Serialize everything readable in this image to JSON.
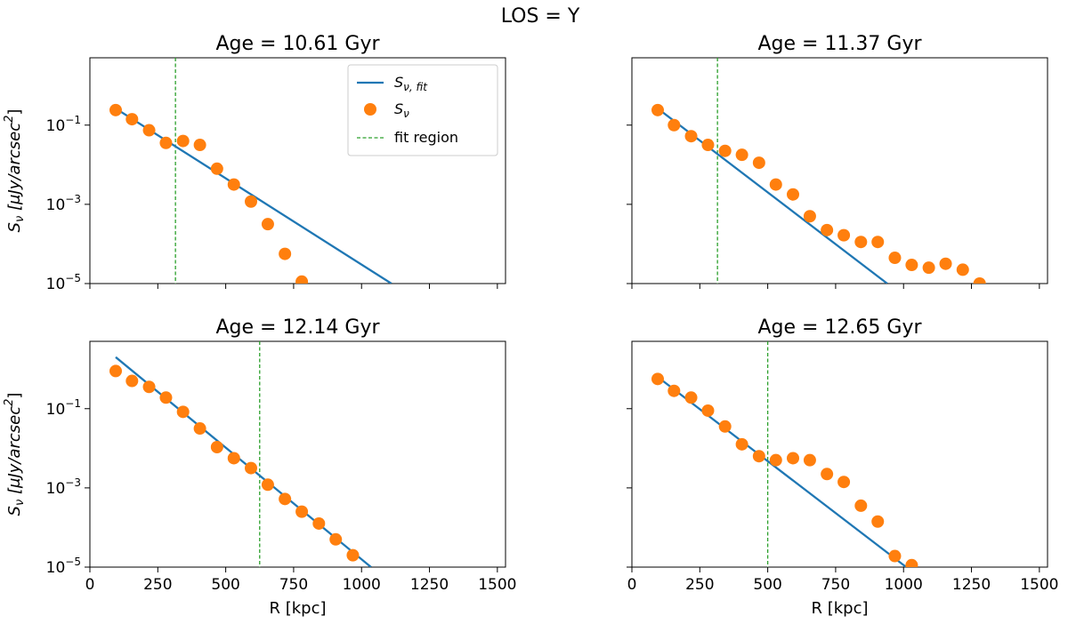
{
  "suptitle": "LOS = Y",
  "colors": {
    "fit": "#1f77b4",
    "data": "#ff7f0e",
    "region": "#2ca02c"
  },
  "legend": {
    "fit_label": "S",
    "fit_sub": "ν, fit",
    "data_label": "S",
    "data_sub": "ν",
    "region_label": "fit region"
  },
  "axis_text": {
    "xlabel": "R [kpc]",
    "ylabel": "S",
    "ylabel_sub": "ν",
    "ylabel_units": " [μJy/arcsec",
    "ylabel_sup": "2",
    "ylabel_close": "]",
    "ytick_base": "10",
    "xticks": [
      "0",
      "250",
      "500",
      "750",
      "1000",
      "1250",
      "1500"
    ],
    "yticks": [
      {
        "exp": "−1",
        "value": -1
      },
      {
        "exp": "−3",
        "value": -3
      },
      {
        "exp": "−5",
        "value": -5
      }
    ]
  },
  "chart_data": [
    {
      "type": "scatter",
      "title": "Age = 10.61 Gyr",
      "xlim": [
        0,
        1530
      ],
      "ylim_log10": [
        -5,
        0.7
      ],
      "xticks": [
        0,
        250,
        500,
        750,
        1000,
        1250,
        1500
      ],
      "xtick_labels_visible": false,
      "ytick_labels_visible": true,
      "fit_region_R": 315,
      "fit_line": {
        "x": [
          95,
          1110
        ],
        "log10_y": [
          -0.58,
          -5.0
        ]
      },
      "points": {
        "R": [
          95,
          155,
          218,
          280,
          343,
          405,
          468,
          530,
          593,
          655,
          718,
          780
        ],
        "log10_S": [
          -0.62,
          -0.85,
          -1.13,
          -1.45,
          -1.4,
          -1.5,
          -2.1,
          -2.5,
          -2.93,
          -3.5,
          -4.25,
          -4.95
        ]
      }
    },
    {
      "type": "scatter",
      "title": "Age = 11.37 Gyr",
      "xlim": [
        0,
        1530
      ],
      "ylim_log10": [
        -5,
        0.7
      ],
      "xticks": [
        0,
        250,
        500,
        750,
        1000,
        1250,
        1500
      ],
      "xtick_labels_visible": false,
      "ytick_labels_visible": false,
      "fit_region_R": 315,
      "fit_line": {
        "x": [
          95,
          940
        ],
        "log10_y": [
          -0.58,
          -5.0
        ]
      },
      "points": {
        "R": [
          95,
          155,
          218,
          280,
          343,
          405,
          468,
          530,
          593,
          655,
          718,
          780,
          843,
          905,
          968,
          1030,
          1093,
          1155,
          1218,
          1280
        ],
        "log10_S": [
          -0.62,
          -1.0,
          -1.28,
          -1.5,
          -1.65,
          -1.75,
          -1.95,
          -2.5,
          -2.75,
          -3.3,
          -3.65,
          -3.78,
          -3.95,
          -3.95,
          -4.35,
          -4.53,
          -4.6,
          -4.5,
          -4.65,
          -5.0
        ]
      }
    },
    {
      "type": "scatter",
      "title": "Age = 12.14 Gyr",
      "xlim": [
        0,
        1530
      ],
      "ylim_log10": [
        -5,
        0.7
      ],
      "xticks": [
        0,
        250,
        500,
        750,
        1000,
        1250,
        1500
      ],
      "xtick_labels_visible": true,
      "ytick_labels_visible": true,
      "fit_region_R": 625,
      "fit_line": {
        "x": [
          95,
          1035
        ],
        "log10_y": [
          0.3,
          -5.0
        ]
      },
      "points": {
        "R": [
          95,
          155,
          218,
          280,
          343,
          405,
          468,
          530,
          593,
          655,
          718,
          780,
          843,
          905,
          968
        ],
        "log10_S": [
          -0.05,
          -0.3,
          -0.45,
          -0.72,
          -1.08,
          -1.5,
          -1.97,
          -2.25,
          -2.5,
          -2.92,
          -3.28,
          -3.6,
          -3.9,
          -4.3,
          -4.7
        ]
      }
    },
    {
      "type": "scatter",
      "title": "Age = 12.65 Gyr",
      "xlim": [
        0,
        1530
      ],
      "ylim_log10": [
        -5,
        0.7
      ],
      "xticks": [
        0,
        250,
        500,
        750,
        1000,
        1250,
        1500
      ],
      "xtick_labels_visible": true,
      "ytick_labels_visible": false,
      "fit_region_R": 500,
      "fit_line": {
        "x": [
          95,
          1010
        ],
        "log10_y": [
          -0.2,
          -5.0
        ]
      },
      "points": {
        "R": [
          95,
          155,
          218,
          280,
          343,
          405,
          468,
          530,
          593,
          655,
          718,
          780,
          843,
          905,
          968,
          1030
        ],
        "log10_S": [
          -0.25,
          -0.55,
          -0.72,
          -1.05,
          -1.45,
          -1.9,
          -2.2,
          -2.3,
          -2.25,
          -2.3,
          -2.65,
          -2.85,
          -3.45,
          -3.85,
          -4.72,
          -4.95
        ]
      }
    }
  ]
}
